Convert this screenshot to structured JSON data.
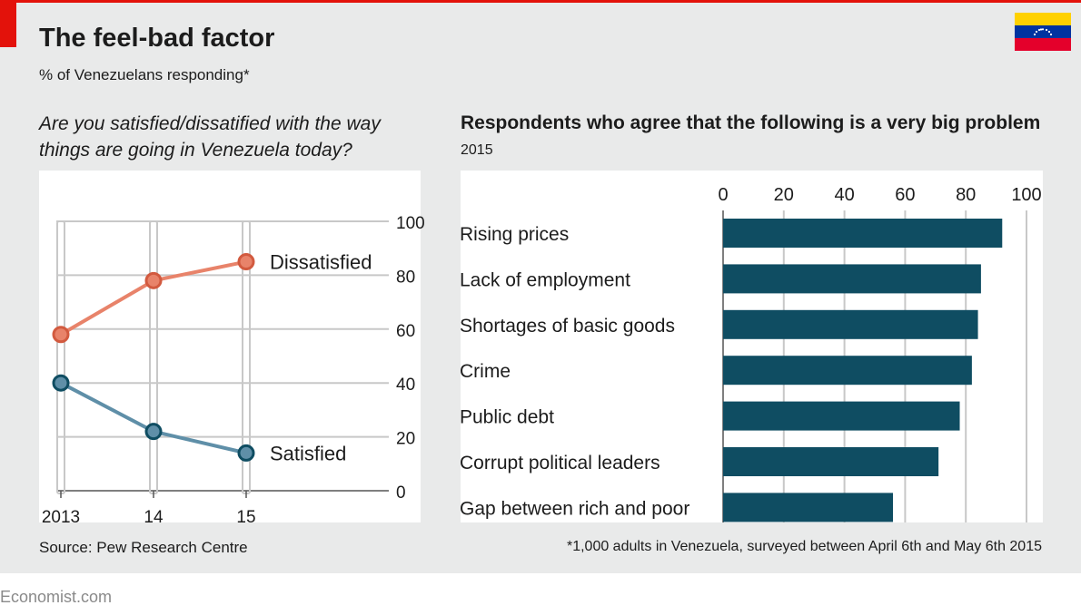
{
  "header": {
    "title": "The feel-bad factor",
    "subtitle": "% of Venezuelans responding*"
  },
  "flag": {
    "name": "venezuela-flag-icon",
    "colors": [
      "#FFD100",
      "#0033A0",
      "#E4002B"
    ]
  },
  "chart_data": [
    {
      "type": "line",
      "title": "Are you satisfied/dissatified with the way things are going in Venezuela today?",
      "x": [
        "2013",
        "14",
        "15"
      ],
      "series": [
        {
          "name": "Dissatisfied",
          "values": [
            58,
            78,
            85
          ],
          "color": "#e8836a"
        },
        {
          "name": "Satisfied",
          "values": [
            40,
            22,
            14
          ],
          "color": "#5f8fa8"
        }
      ],
      "yticks": [
        "0",
        "20",
        "40",
        "60",
        "80",
        "100"
      ],
      "ylim": [
        0,
        100
      ],
      "grid": true
    },
    {
      "type": "bar",
      "title": "Respondents who agree that the following is a very big problem",
      "subtitle": "2015",
      "categories": [
        "Rising prices",
        "Lack of employment",
        "Shortages of basic goods",
        "Crime",
        "Public debt",
        "Corrupt political leaders",
        "Gap between rich and poor"
      ],
      "values": [
        92,
        85,
        84,
        82,
        78,
        71,
        56
      ],
      "xticks": [
        "0",
        "20",
        "40",
        "60",
        "80",
        "100"
      ],
      "xlim": [
        0,
        100
      ],
      "color": "#0f4d62",
      "grid": true
    }
  ],
  "footer": {
    "source": "Source: Pew Research Centre",
    "note": "*1,000 adults in Venezuela, surveyed between April 6th and May 6th 2015",
    "brand": "Economist.com"
  }
}
